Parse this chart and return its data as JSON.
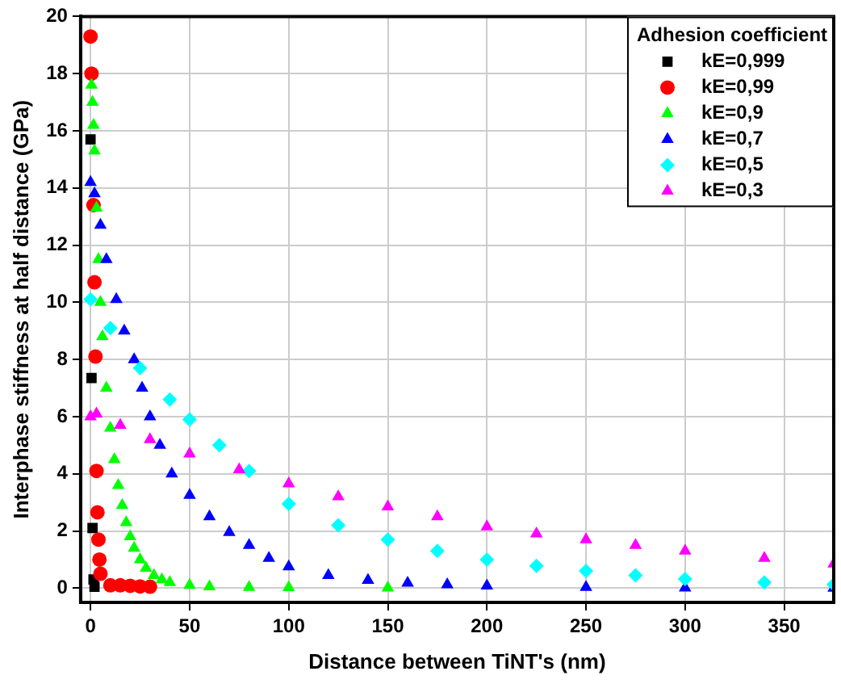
{
  "chart_data": {
    "type": "scatter",
    "xlabel": "Distance between TiNT's (nm)",
    "ylabel": "Interphase stiffness at half distance (GPa)",
    "legend_title": "Adhesion coefficient",
    "legend": "top right",
    "grid": true,
    "xlim": [
      -5,
      375
    ],
    "xticks": [
      0,
      50,
      100,
      150,
      200,
      250,
      300,
      350
    ],
    "ylim": [
      -0.5,
      20
    ],
    "yticks": [
      0,
      2,
      4,
      6,
      8,
      10,
      12,
      14,
      16,
      18,
      20
    ],
    "series": [
      {
        "name": "kE=0,999",
        "color": "#000000",
        "marker": "square",
        "x": [
          0,
          0.5,
          1,
          1.5,
          2
        ],
        "values": [
          15.7,
          7.35,
          2.1,
          0.3,
          0.05
        ]
      },
      {
        "name": "kE=0,99",
        "color": "#ff0000",
        "marker": "circle",
        "x": [
          0,
          0.5,
          1.5,
          2,
          2.5,
          3,
          3.5,
          4,
          4.5,
          5,
          10,
          15,
          20,
          25,
          30
        ],
        "values": [
          19.3,
          18.0,
          13.4,
          10.7,
          8.1,
          4.1,
          2.65,
          1.7,
          1.0,
          0.5,
          0.1,
          0.1,
          0.08,
          0.06,
          0.05
        ]
      },
      {
        "name": "kE=0,9",
        "color": "#00ff00",
        "marker": "triangle",
        "x": [
          0.5,
          1,
          1.5,
          2,
          3,
          4,
          5,
          6,
          8,
          10,
          12,
          14,
          16,
          18,
          20,
          22,
          25,
          28,
          32,
          36,
          40,
          50,
          60,
          80,
          100,
          150
        ],
        "values": [
          17.6,
          17.0,
          16.2,
          15.3,
          13.3,
          11.5,
          10,
          8.8,
          7.0,
          5.6,
          4.5,
          3.6,
          2.9,
          2.3,
          1.8,
          1.4,
          1.0,
          0.7,
          0.45,
          0.3,
          0.2,
          0.1,
          0.05,
          0.03,
          0.02,
          0.01
        ]
      },
      {
        "name": "kE=0,7",
        "color": "#0000ff",
        "marker": "triangle",
        "x": [
          0,
          2,
          5,
          8,
          13,
          17,
          22,
          26,
          30,
          35,
          41,
          50,
          60,
          70,
          80,
          90,
          100,
          120,
          140,
          160,
          180,
          200,
          250,
          300,
          375
        ],
        "values": [
          14.2,
          13.8,
          12.7,
          11.5,
          10.1,
          9.0,
          8.0,
          7.0,
          6.0,
          5.0,
          4.0,
          3.25,
          2.5,
          1.95,
          1.5,
          1.05,
          0.75,
          0.45,
          0.28,
          0.18,
          0.12,
          0.08,
          0.03,
          0.01,
          0
        ]
      },
      {
        "name": "kE=0,5",
        "color": "#00ffff",
        "marker": "diamond",
        "x": [
          0,
          10,
          25,
          40,
          50,
          65,
          80,
          100,
          125,
          150,
          175,
          200,
          225,
          250,
          275,
          300,
          340,
          375
        ],
        "values": [
          10.1,
          9.1,
          7.7,
          6.6,
          5.9,
          5.0,
          4.1,
          2.95,
          2.2,
          1.7,
          1.3,
          1.0,
          0.78,
          0.6,
          0.45,
          0.32,
          0.2,
          0.13
        ]
      },
      {
        "name": "kE=0,3",
        "color": "#ff00ff",
        "marker": "triangle",
        "x": [
          0,
          3,
          15,
          30,
          50,
          75,
          100,
          125,
          150,
          175,
          200,
          225,
          250,
          275,
          300,
          340,
          375
        ],
        "values": [
          6.0,
          6.1,
          5.7,
          5.2,
          4.7,
          4.15,
          3.65,
          3.2,
          2.85,
          2.5,
          2.15,
          1.9,
          1.7,
          1.5,
          1.3,
          1.05,
          0.85
        ]
      }
    ]
  }
}
